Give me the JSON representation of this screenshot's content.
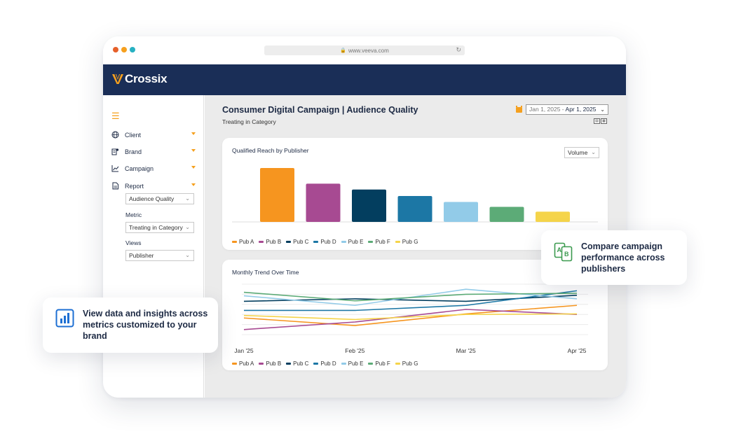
{
  "browser": {
    "url": "www.veeva.com",
    "dots": [
      "#e6602a",
      "#f6a01e",
      "#27b1c2"
    ]
  },
  "brand": {
    "name": "Crossix",
    "logo_color": "#f6a01e",
    "header_color": "#1a2e57"
  },
  "sidebar": {
    "menu_icon": "hamburger-icon",
    "items": [
      {
        "label": "Client",
        "icon": "globe-icon"
      },
      {
        "label": "Brand",
        "icon": "brand-icon"
      },
      {
        "label": "Campaign",
        "icon": "trend-icon"
      },
      {
        "label": "Report",
        "icon": "report-icon"
      }
    ],
    "report_select": "Audience Quality",
    "metric_label": "Metric",
    "metric_select": "Treating in Category",
    "views_label": "Views",
    "views_select": "Publisher"
  },
  "page": {
    "title": "Consumer Digital Campaign | Audience Quality",
    "subtitle": "Treating in Category",
    "date_range_start": "Jan 1, 2025 -",
    "date_range_end": "Apr 1, 2025"
  },
  "reach_card": {
    "title": "Qualified Reach by Publisher",
    "measure_select": "Volume"
  },
  "trend_card": {
    "title": "Monthly Trend Over Time"
  },
  "publishers": [
    {
      "name": "Pub A",
      "color": "#f6951f"
    },
    {
      "name": "Pub B",
      "color": "#a74a92"
    },
    {
      "name": "Pub C",
      "color": "#033e5f"
    },
    {
      "name": "Pub D",
      "color": "#1c77a5"
    },
    {
      "name": "Pub E",
      "color": "#92cbe8"
    },
    {
      "name": "Pub F",
      "color": "#5cab77"
    },
    {
      "name": "Pub G",
      "color": "#f5d44a"
    }
  ],
  "chart_data": [
    {
      "type": "bar",
      "title": "Qualified Reach by Publisher",
      "categories": [
        "Pub A",
        "Pub B",
        "Pub C",
        "Pub D",
        "Pub E",
        "Pub F",
        "Pub G"
      ],
      "values": [
        100,
        71,
        60,
        48,
        37,
        28,
        19
      ],
      "ylim": [
        0,
        100
      ],
      "legend": "bottom"
    },
    {
      "type": "line",
      "title": "Monthly Trend Over Time",
      "x": [
        "Jan '25",
        "Feb '25",
        "Mar '25",
        "Apr '25"
      ],
      "ylim": [
        0,
        100
      ],
      "grid": true,
      "legend": "bottom",
      "series": [
        {
          "name": "Pub A",
          "values": [
            33,
            18,
            41,
            58
          ]
        },
        {
          "name": "Pub B",
          "values": [
            10,
            25,
            50,
            40
          ]
        },
        {
          "name": "Pub C",
          "values": [
            66,
            71,
            66,
            78
          ]
        },
        {
          "name": "Pub D",
          "values": [
            48,
            48,
            58,
            87
          ]
        },
        {
          "name": "Pub E",
          "values": [
            77,
            58,
            90,
            71
          ]
        },
        {
          "name": "Pub F",
          "values": [
            84,
            67,
            80,
            82
          ]
        },
        {
          "name": "Pub G",
          "values": [
            38,
            30,
            40,
            41
          ]
        }
      ]
    }
  ],
  "callouts": {
    "compare": "Compare campaign performance across publishers",
    "view": "View data and insights across metrics customized to your brand"
  }
}
